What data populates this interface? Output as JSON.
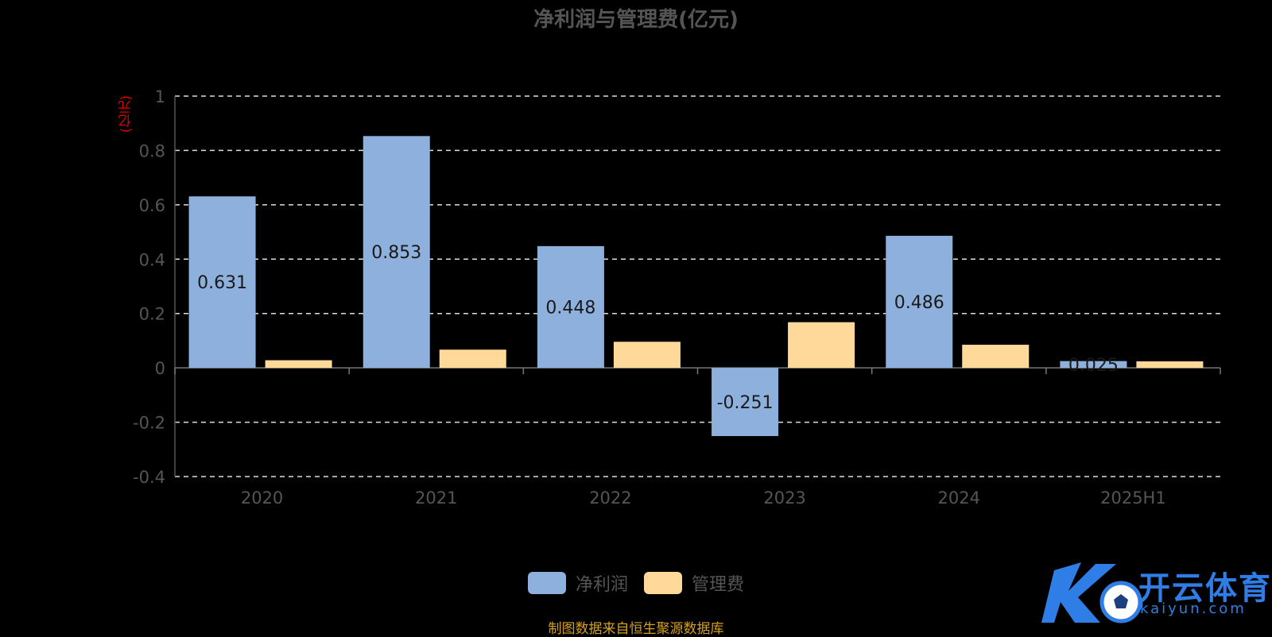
{
  "chart_data": {
    "type": "bar",
    "title": "净利润与管理费(亿元)",
    "y_unit": "(亿元)",
    "categories": [
      "2020",
      "2021",
      "2022",
      "2023",
      "2024",
      "2025H1"
    ],
    "series": [
      {
        "name": "净利润",
        "values": [
          0.631,
          0.853,
          0.448,
          -0.251,
          0.486,
          0.025
        ],
        "color": "#8eb0dc",
        "data_labels": [
          "0.631",
          "0.853",
          "0.448",
          "-0.251",
          "0.486",
          "0.025"
        ]
      },
      {
        "name": "管理费",
        "values": [
          0.028,
          0.067,
          0.096,
          0.168,
          0.085,
          0.024
        ],
        "color": "#ffd999"
      }
    ],
    "ylim": [
      -0.4,
      1
    ],
    "yticks": [
      "-0.4",
      "-0.2",
      "0",
      "0.2",
      "0.4",
      "0.6",
      "0.8",
      "1"
    ],
    "grid": true,
    "legend": "bottom-center"
  },
  "source_note": "制图数据来自恒生聚源数据库",
  "watermark": {
    "brand": "开云体育",
    "domain": "kaiyun.com",
    "icon": "soccer-ball-icon"
  }
}
